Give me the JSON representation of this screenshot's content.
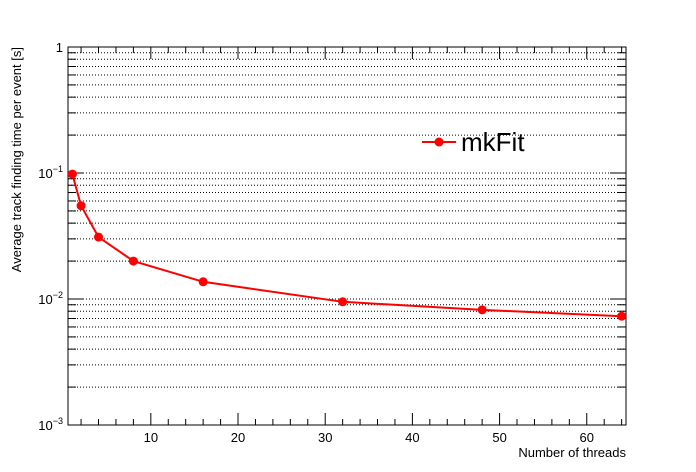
{
  "chart_data": {
    "type": "line",
    "xlabel": "Number of threads",
    "ylabel": "Average track finding time per event [s]",
    "xlim": [
      0.5,
      64.5
    ],
    "ylim": [
      0.001,
      1
    ],
    "yscale": "log",
    "grid": {
      "x": false,
      "y": true,
      "y_minor": true,
      "style": "dotted"
    },
    "legend_position": "top-right",
    "x_ticks": [
      10,
      20,
      30,
      40,
      50,
      60
    ],
    "x_tick_labels": [
      "10",
      "20",
      "30",
      "40",
      "50",
      "60"
    ],
    "y_ticks": [
      0.001,
      0.01,
      0.1,
      1
    ],
    "y_tick_labels": [
      {
        "base": "10",
        "exp": "−3"
      },
      {
        "base": "10",
        "exp": "−2"
      },
      {
        "base": "10",
        "exp": "−1"
      },
      {
        "base": "1",
        "exp": ""
      }
    ],
    "series": [
      {
        "name": "mkFit",
        "color": "#ff0000",
        "x": [
          1,
          2,
          4,
          8,
          16,
          32,
          48,
          64
        ],
        "y": [
          0.098,
          0.055,
          0.031,
          0.02,
          0.0137,
          0.0095,
          0.0082,
          0.0073
        ]
      }
    ]
  }
}
